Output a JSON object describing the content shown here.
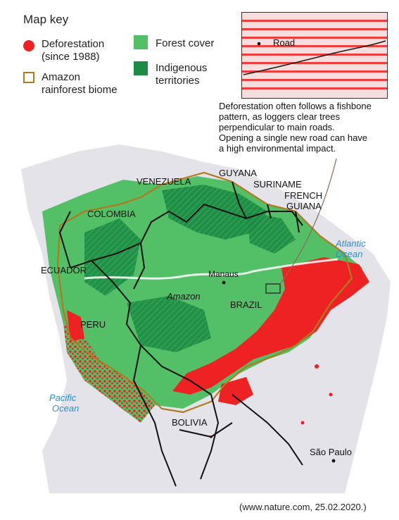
{
  "map_key": {
    "title": "Map key",
    "deforestation": [
      "Deforestation",
      "(since 1988)"
    ],
    "biome": [
      "Amazon",
      "rainforest biome"
    ],
    "forest": "Forest cover",
    "indigenous": [
      "Indigenous",
      "territories"
    ]
  },
  "inset": {
    "road_label": "Road",
    "caption": [
      "Deforestation often follows a fishbone",
      "pattern, as loggers clear trees",
      "perpendicular to main roads.",
      "Opening a single new road can have",
      "a high environmental impact."
    ]
  },
  "countries": {
    "venezuela": "VENEZUELA",
    "guyana": "GUYANA",
    "suriname": "SURINAME",
    "french_guiana": [
      "FRENCH",
      "GUIANA"
    ],
    "colombia": "COLOMBIA",
    "ecuador": "ECUADOR",
    "peru": "PERU",
    "brazil": "BRAZIL",
    "bolivia": "BOLIVIA"
  },
  "places": {
    "manaus": "Manaus",
    "amazon": "Amazon",
    "sao_paulo": "São Paulo"
  },
  "oceans": {
    "atlantic": [
      "Atlantic",
      "Ocean"
    ],
    "pacific": [
      "Pacific",
      "Ocean"
    ]
  },
  "source": "(www.nature.com, 25.02.2020.)",
  "colors": {
    "deforestation": "#ee2222",
    "forest": "#53c068",
    "indigenous": "#1c8c45",
    "biome_outline": "#b07a1e",
    "land": "#e4e3ea",
    "ocean_text": "#2a8fd0"
  },
  "icons": [
    "red-dot-icon",
    "biome-outline-icon",
    "forest-square-icon",
    "indigenous-square-icon"
  ]
}
